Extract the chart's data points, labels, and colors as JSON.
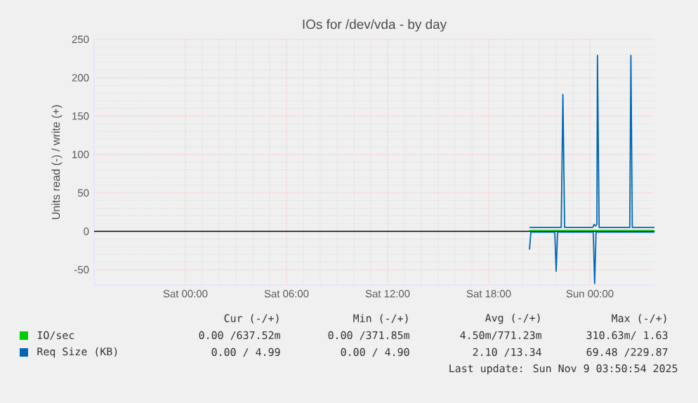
{
  "chart_data": {
    "type": "line",
    "title": "IOs for /dev/vda - by day",
    "ylabel": "Units read (-) / write (+)",
    "xlim": [
      "2025-11-07T18:35",
      "2025-11-09T03:50"
    ],
    "xticks": [
      {
        "value": "2025-11-08T00:00",
        "label": "Sat 00:00"
      },
      {
        "value": "2025-11-08T06:00",
        "label": "Sat 06:00"
      },
      {
        "value": "2025-11-08T12:00",
        "label": "Sat 12:00"
      },
      {
        "value": "2025-11-08T18:00",
        "label": "Sat 18:00"
      },
      {
        "value": "2025-11-09T00:00",
        "label": "Sun 00:00"
      }
    ],
    "ylim": [
      -70,
      250
    ],
    "yticks": [
      -50,
      0,
      50,
      100,
      150,
      200,
      250
    ],
    "grid": true,
    "legend": "bottom",
    "ref_lines": [
      {
        "axis": "y",
        "value": 0,
        "color": "#000000"
      }
    ],
    "series": [
      {
        "name": "IO/sec",
        "color": "#00cc00",
        "x": [
          "2025-11-08T20:25",
          "2025-11-09T03:50"
        ],
        "values": [
          1,
          1
        ]
      },
      {
        "name": "Req Size (KB)",
        "color": "#0066b3",
        "x": [
          "2025-11-08T20:25",
          "2025-11-08T22:18",
          "2025-11-08T22:24",
          "2025-11-08T22:30",
          "2025-11-09T00:10",
          "2025-11-09T00:15",
          "2025-11-09T00:20",
          "2025-11-09T00:25",
          "2025-11-09T00:27",
          "2025-11-09T00:33",
          "2025-11-09T02:22",
          "2025-11-09T02:26",
          "2025-11-09T02:31",
          "2025-11-09T03:50"
        ],
        "values": [
          5,
          5,
          178,
          5,
          5,
          9,
          7,
          9,
          229,
          5,
          5,
          229,
          5,
          5
        ]
      },
      {
        "color": "#0066b3",
        "x": [
          "2025-11-08T20:25",
          "2025-11-08T20:30",
          "2025-11-08T21:55",
          "2025-11-08T22:00",
          "2025-11-08T22:05",
          "2025-11-09T00:12",
          "2025-11-09T00:17",
          "2025-11-09T00:22",
          "2025-11-09T03:50"
        ],
        "values": [
          -24,
          -1,
          -1,
          -52,
          -1,
          -1,
          -68,
          -1,
          -1
        ]
      }
    ],
    "annotations": [
      "Cur (-/+)",
      "Min (-/+)",
      "Avg (-/+)",
      "Max (-/+)",
      "0.00 /637.52m",
      "0.00 /371.85m",
      "4.50m/771.23m",
      "310.63m/  1.63",
      "0.00 / 4.99",
      "0.00 / 4.90",
      "2.10 /13.34",
      "69.48 /229.87",
      "Last update: Sun Nov  9 03:50:54 2025"
    ]
  }
}
